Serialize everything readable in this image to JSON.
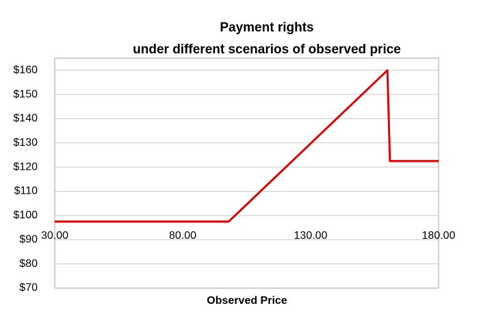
{
  "chart_data": {
    "type": "line",
    "title": "Payment rights",
    "subtitle": "under different scenarios of observed price",
    "x_label": "Observed Price",
    "x": [
      30,
      98,
      160,
      161,
      180
    ],
    "series": [
      {
        "color": "#e00000",
        "values": [
          97.5,
          97.5,
          160,
          122.5,
          122.5
        ]
      }
    ],
    "xlim": [
      30,
      180
    ],
    "xticks": [
      {
        "value": 30,
        "label": "30.00"
      },
      {
        "value": 80,
        "label": "80.00"
      },
      {
        "value": 130,
        "label": "130.00"
      },
      {
        "value": 180,
        "label": "180.00"
      }
    ],
    "ylim": [
      70,
      165
    ],
    "yticks": [
      {
        "value": 70,
        "label": "$70"
      },
      {
        "value": 80,
        "label": "$80"
      },
      {
        "value": 90,
        "label": "$90"
      },
      {
        "value": 100,
        "label": "$100"
      },
      {
        "value": 110,
        "label": "$110"
      },
      {
        "value": 120,
        "label": "$120"
      },
      {
        "value": 130,
        "label": "$130"
      },
      {
        "value": 140,
        "label": "$140"
      },
      {
        "value": 150,
        "label": "$150"
      },
      {
        "value": 160,
        "label": "$160"
      }
    ],
    "grid": true
  }
}
